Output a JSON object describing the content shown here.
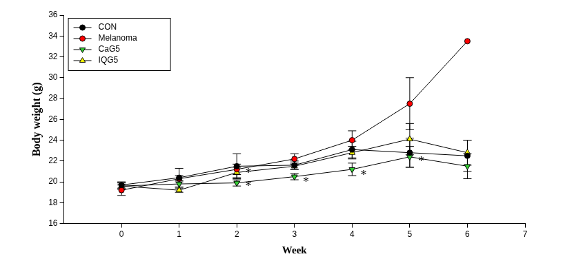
{
  "chart_data": {
    "type": "line",
    "x_label": "Week",
    "y_label": "Body weight (g)",
    "xlim": [
      -1,
      7
    ],
    "xticks": [
      0,
      1,
      2,
      3,
      4,
      5,
      6,
      7
    ],
    "ylim": [
      16,
      36
    ],
    "yticks": [
      16,
      18,
      20,
      22,
      24,
      26,
      28,
      30,
      32,
      34,
      36
    ],
    "grid": false,
    "legend": "upper left",
    "x": [
      0,
      1,
      2,
      3,
      4,
      5,
      6
    ],
    "series": [
      {
        "name": "CON",
        "color": "#000000",
        "marker": "circle",
        "values": [
          19.7,
          20.4,
          21.5,
          21.6,
          23.1,
          22.8,
          22.5
        ],
        "errors": [
          0.3,
          0.9,
          1.2,
          0.4,
          0.8,
          1.4,
          1.5
        ]
      },
      {
        "name": "Melanoma",
        "color": "#ff0000",
        "marker": "circle",
        "values": [
          19.2,
          20.3,
          21.2,
          22.2,
          24.0,
          27.5,
          33.5
        ],
        "errors": [
          0.5,
          0.3,
          0.5,
          0.5,
          0.9,
          2.5,
          null
        ]
      },
      {
        "name": "CaG5",
        "color": "#33cc33",
        "marker": "triangle-down",
        "values": [
          19.6,
          19.8,
          19.9,
          20.5,
          21.2,
          22.4,
          21.5
        ],
        "errors": [
          0.3,
          0.3,
          0.3,
          0.3,
          0.6,
          1.0,
          1.2
        ]
      },
      {
        "name": "IQG5",
        "color": "#ffff00",
        "marker": "triangle",
        "values": [
          19.6,
          19.2,
          20.9,
          21.5,
          22.8,
          24.1,
          22.8
        ],
        "errors": [
          0.3,
          0.2,
          0.5,
          0.3,
          0.6,
          1.5,
          1.2
        ]
      }
    ],
    "annotations": [
      {
        "text": "*",
        "x": 2.2,
        "y": 20.8
      },
      {
        "text": "*",
        "x": 2.2,
        "y": 19.5
      },
      {
        "text": "*",
        "x": 3.2,
        "y": 19.9
      },
      {
        "text": "*",
        "x": 4.2,
        "y": 20.6
      },
      {
        "text": "*",
        "x": 5.2,
        "y": 21.9
      }
    ]
  }
}
